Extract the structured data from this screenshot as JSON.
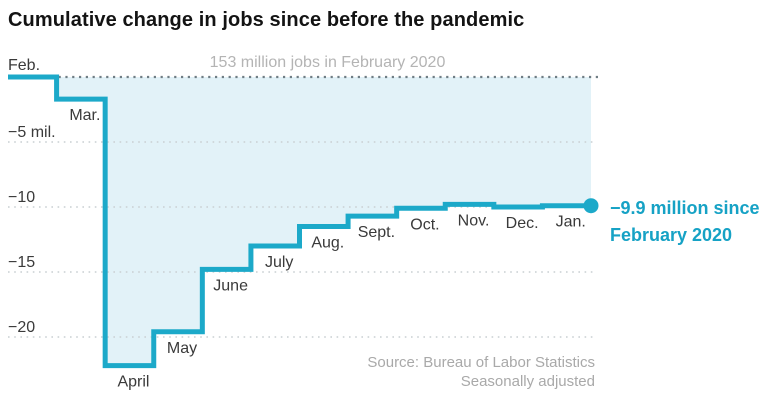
{
  "header": {
    "title": "Cumulative change in jobs since before the pandemic"
  },
  "chart_data": {
    "type": "line",
    "subtype": "step-area",
    "title": "Cumulative change in jobs since before the pandemic",
    "unit": "millions of jobs, cumulative change since February 2020",
    "zero_line_label": "153 million jobs in February 2020",
    "categories": [
      "Feb.",
      "Mar.",
      "April",
      "May",
      "June",
      "July",
      "Aug.",
      "Sept.",
      "Oct.",
      "Nov.",
      "Dec.",
      "Jan."
    ],
    "values": [
      0,
      -1.7,
      -22.2,
      -19.6,
      -14.8,
      -13.0,
      -11.5,
      -10.7,
      -10.1,
      -9.8,
      -10.0,
      -9.9
    ],
    "y_ticks": [
      {
        "value": -5,
        "label": "−5 mil."
      },
      {
        "value": -10,
        "label": "−10"
      },
      {
        "value": -15,
        "label": "−15"
      },
      {
        "value": -20,
        "label": "−20"
      }
    ],
    "ylim": [
      -24,
      0
    ],
    "xlabel": "",
    "ylabel": "",
    "grid": "dotted horizontal gridlines; darker dotted zero baseline",
    "legend": "none",
    "end_point": {
      "month": "Jan.",
      "value": -9.9
    },
    "annotation": "−9.9 million since February 2020",
    "source_line1": "Source: Bureau of Labor Statistics",
    "source_line2": "Seasonally adjusted",
    "colors": {
      "line": "#1ca9c9",
      "fill": "#e2f2f8",
      "annotation_text": "#16a2c5",
      "title_text": "#131313",
      "axis_label_text": "#3a3a3a",
      "zero_line": "#6f7d84",
      "gridline": "#c9cfd2",
      "zero_label_text": "#b4b4b4",
      "source_text": "#a9a9a9"
    }
  }
}
